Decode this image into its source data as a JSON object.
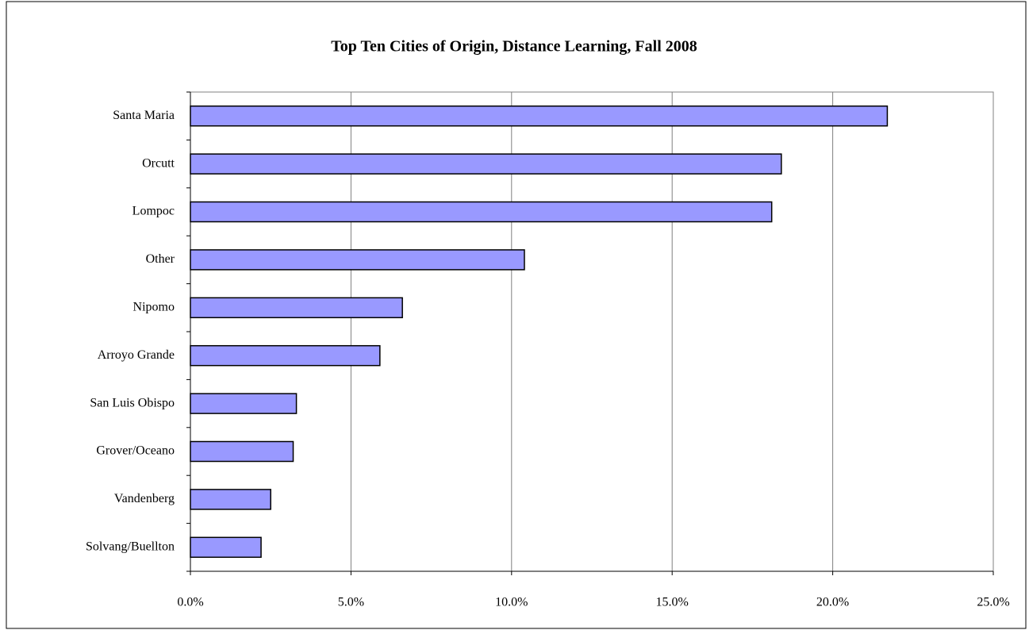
{
  "chart_data": {
    "type": "bar",
    "orientation": "horizontal",
    "title": "Top Ten Cities of Origin, Distance Learning, Fall 2008",
    "categories": [
      "Santa Maria",
      "Orcutt",
      "Lompoc",
      "Other",
      "Nipomo",
      "Arroyo Grande",
      "San Luis Obispo",
      "Grover/Oceano",
      "Vandenberg",
      "Solvang/Buellton"
    ],
    "values": [
      21.7,
      18.4,
      18.1,
      10.4,
      6.6,
      5.9,
      3.3,
      3.2,
      2.5,
      2.2
    ],
    "color": "#9999ff",
    "xlim": [
      0,
      25
    ],
    "xticks": [
      {
        "value": 0,
        "label": "0.0%"
      },
      {
        "value": 5,
        "label": "5.0%"
      },
      {
        "value": 10,
        "label": "10.0%"
      },
      {
        "value": 15,
        "label": "15.0%"
      },
      {
        "value": 20,
        "label": "20.0%"
      },
      {
        "value": 25,
        "label": "25.0%"
      }
    ],
    "grid": true
  }
}
